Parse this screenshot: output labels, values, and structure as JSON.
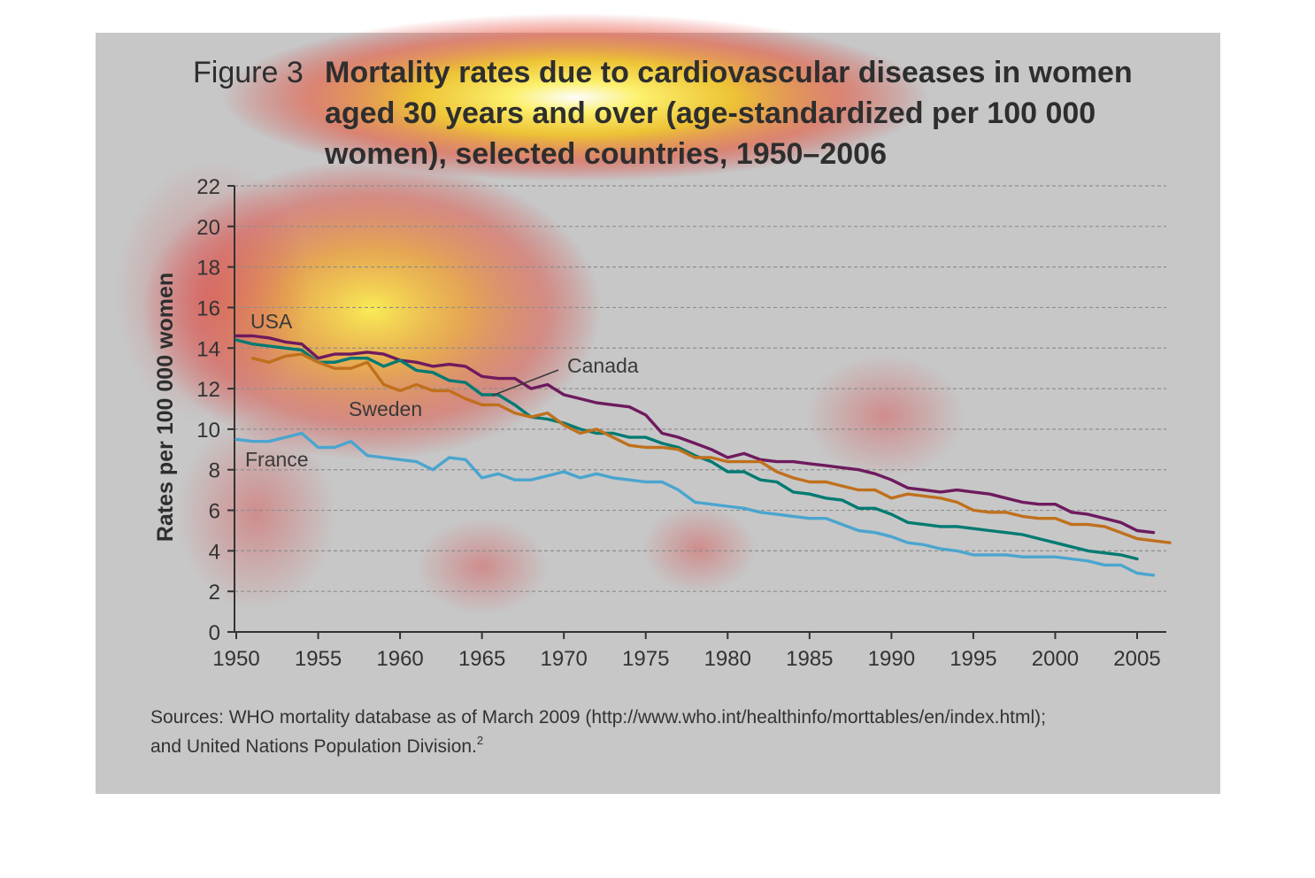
{
  "chart_data": {
    "type": "line",
    "figure_label": "Figure 3",
    "title_lines": [
      "Mortality rates due to cardiovascular diseases in women",
      "aged 30 years and over (age-standardized per 100 000",
      "women), selected countries, 1950–2006"
    ],
    "ylabel": "Rates per 100 000 women",
    "xlabel": "",
    "xlim": [
      1950,
      2007
    ],
    "ylim": [
      0,
      22
    ],
    "x_ticks": [
      1950,
      1955,
      1960,
      1965,
      1970,
      1975,
      1980,
      1985,
      1990,
      1995,
      2000,
      2005
    ],
    "y_ticks": [
      0,
      2,
      4,
      6,
      8,
      10,
      12,
      14,
      16,
      18,
      20,
      22
    ],
    "grid": true,
    "series": [
      {
        "name": "USA",
        "color": "#6e1a5e",
        "points": [
          [
            1950,
            14.6
          ],
          [
            1951,
            14.6
          ],
          [
            1952,
            14.5
          ],
          [
            1953,
            14.3
          ],
          [
            1954,
            14.2
          ],
          [
            1955,
            13.5
          ],
          [
            1956,
            13.7
          ],
          [
            1957,
            13.7
          ],
          [
            1958,
            13.8
          ],
          [
            1959,
            13.7
          ],
          [
            1960,
            13.4
          ],
          [
            1961,
            13.3
          ],
          [
            1962,
            13.1
          ],
          [
            1963,
            13.2
          ],
          [
            1964,
            13.1
          ],
          [
            1965,
            12.6
          ],
          [
            1966,
            12.5
          ],
          [
            1967,
            12.5
          ],
          [
            1968,
            12.0
          ],
          [
            1969,
            12.2
          ],
          [
            1970,
            11.7
          ],
          [
            1971,
            11.5
          ],
          [
            1972,
            11.3
          ],
          [
            1973,
            11.2
          ],
          [
            1974,
            11.1
          ],
          [
            1975,
            10.7
          ],
          [
            1976,
            9.8
          ],
          [
            1977,
            9.6
          ],
          [
            1978,
            9.3
          ],
          [
            1979,
            9.0
          ],
          [
            1980,
            8.6
          ],
          [
            1981,
            8.8
          ],
          [
            1982,
            8.5
          ],
          [
            1983,
            8.4
          ],
          [
            1984,
            8.4
          ],
          [
            1985,
            8.3
          ],
          [
            1986,
            8.2
          ],
          [
            1987,
            8.1
          ],
          [
            1988,
            8.0
          ],
          [
            1989,
            7.8
          ],
          [
            1990,
            7.5
          ],
          [
            1991,
            7.1
          ],
          [
            1992,
            7.0
          ],
          [
            1993,
            6.9
          ],
          [
            1994,
            7.0
          ],
          [
            1995,
            6.9
          ],
          [
            1996,
            6.8
          ],
          [
            1997,
            6.6
          ],
          [
            1998,
            6.4
          ],
          [
            1999,
            6.3
          ],
          [
            2000,
            6.3
          ],
          [
            2001,
            5.9
          ],
          [
            2002,
            5.8
          ],
          [
            2003,
            5.6
          ],
          [
            2004,
            5.4
          ],
          [
            2005,
            5.0
          ],
          [
            2006,
            4.9
          ]
        ]
      },
      {
        "name": "Canada",
        "color": "#007a72",
        "points": [
          [
            1950,
            14.4
          ],
          [
            1951,
            14.2
          ],
          [
            1952,
            14.1
          ],
          [
            1953,
            14.0
          ],
          [
            1954,
            13.9
          ],
          [
            1955,
            13.3
          ],
          [
            1956,
            13.3
          ],
          [
            1957,
            13.5
          ],
          [
            1958,
            13.5
          ],
          [
            1959,
            13.1
          ],
          [
            1960,
            13.4
          ],
          [
            1961,
            12.9
          ],
          [
            1962,
            12.8
          ],
          [
            1963,
            12.4
          ],
          [
            1964,
            12.3
          ],
          [
            1965,
            11.7
          ],
          [
            1966,
            11.7
          ],
          [
            1967,
            11.2
          ],
          [
            1968,
            10.6
          ],
          [
            1969,
            10.5
          ],
          [
            1970,
            10.3
          ],
          [
            1971,
            10.0
          ],
          [
            1972,
            9.8
          ],
          [
            1973,
            9.8
          ],
          [
            1974,
            9.6
          ],
          [
            1975,
            9.6
          ],
          [
            1976,
            9.3
          ],
          [
            1977,
            9.1
          ],
          [
            1978,
            8.7
          ],
          [
            1979,
            8.4
          ],
          [
            1980,
            7.9
          ],
          [
            1981,
            7.9
          ],
          [
            1982,
            7.5
          ],
          [
            1983,
            7.4
          ],
          [
            1984,
            6.9
          ],
          [
            1985,
            6.8
          ],
          [
            1986,
            6.6
          ],
          [
            1987,
            6.5
          ],
          [
            1988,
            6.1
          ],
          [
            1989,
            6.1
          ],
          [
            1990,
            5.8
          ],
          [
            1991,
            5.4
          ],
          [
            1992,
            5.3
          ],
          [
            1993,
            5.2
          ],
          [
            1994,
            5.2
          ],
          [
            1995,
            5.1
          ],
          [
            1996,
            5.0
          ],
          [
            1997,
            4.9
          ],
          [
            1998,
            4.8
          ],
          [
            1999,
            4.6
          ],
          [
            2000,
            4.4
          ],
          [
            2001,
            4.2
          ],
          [
            2002,
            4.0
          ],
          [
            2003,
            3.9
          ],
          [
            2004,
            3.8
          ],
          [
            2005,
            3.6
          ]
        ]
      },
      {
        "name": "Sweden",
        "color": "#c0701c",
        "points": [
          [
            1951,
            13.5
          ],
          [
            1952,
            13.3
          ],
          [
            1953,
            13.6
          ],
          [
            1954,
            13.7
          ],
          [
            1955,
            13.3
          ],
          [
            1956,
            13.0
          ],
          [
            1957,
            13.0
          ],
          [
            1958,
            13.3
          ],
          [
            1959,
            12.2
          ],
          [
            1960,
            11.9
          ],
          [
            1961,
            12.2
          ],
          [
            1962,
            11.9
          ],
          [
            1963,
            11.9
          ],
          [
            1964,
            11.5
          ],
          [
            1965,
            11.2
          ],
          [
            1966,
            11.2
          ],
          [
            1967,
            10.8
          ],
          [
            1968,
            10.6
          ],
          [
            1969,
            10.8
          ],
          [
            1970,
            10.2
          ],
          [
            1971,
            9.8
          ],
          [
            1972,
            10.0
          ],
          [
            1973,
            9.6
          ],
          [
            1974,
            9.2
          ],
          [
            1975,
            9.1
          ],
          [
            1976,
            9.1
          ],
          [
            1977,
            9.0
          ],
          [
            1978,
            8.6
          ],
          [
            1979,
            8.6
          ],
          [
            1980,
            8.4
          ],
          [
            1981,
            8.4
          ],
          [
            1982,
            8.4
          ],
          [
            1983,
            7.9
          ],
          [
            1984,
            7.6
          ],
          [
            1985,
            7.4
          ],
          [
            1986,
            7.4
          ],
          [
            1987,
            7.2
          ],
          [
            1988,
            7.0
          ],
          [
            1989,
            7.0
          ],
          [
            1990,
            6.6
          ],
          [
            1991,
            6.8
          ],
          [
            1992,
            6.7
          ],
          [
            1993,
            6.6
          ],
          [
            1994,
            6.4
          ],
          [
            1995,
            6.0
          ],
          [
            1996,
            5.9
          ],
          [
            1997,
            5.9
          ],
          [
            1998,
            5.7
          ],
          [
            1999,
            5.6
          ],
          [
            2000,
            5.6
          ],
          [
            2001,
            5.3
          ],
          [
            2002,
            5.3
          ],
          [
            2003,
            5.2
          ],
          [
            2004,
            4.9
          ],
          [
            2005,
            4.6
          ],
          [
            2006,
            4.5
          ],
          [
            2007,
            4.4
          ]
        ]
      },
      {
        "name": "France",
        "color": "#4aa5cf",
        "points": [
          [
            1950,
            9.5
          ],
          [
            1951,
            9.4
          ],
          [
            1952,
            9.4
          ],
          [
            1953,
            9.6
          ],
          [
            1954,
            9.8
          ],
          [
            1955,
            9.1
          ],
          [
            1956,
            9.1
          ],
          [
            1957,
            9.4
          ],
          [
            1958,
            8.7
          ],
          [
            1959,
            8.6
          ],
          [
            1960,
            8.5
          ],
          [
            1961,
            8.4
          ],
          [
            1962,
            8.0
          ],
          [
            1963,
            8.6
          ],
          [
            1964,
            8.5
          ],
          [
            1965,
            7.6
          ],
          [
            1966,
            7.8
          ],
          [
            1967,
            7.5
          ],
          [
            1968,
            7.5
          ],
          [
            1969,
            7.7
          ],
          [
            1970,
            7.9
          ],
          [
            1971,
            7.6
          ],
          [
            1972,
            7.8
          ],
          [
            1973,
            7.6
          ],
          [
            1974,
            7.5
          ],
          [
            1975,
            7.4
          ],
          [
            1976,
            7.4
          ],
          [
            1977,
            7.0
          ],
          [
            1978,
            6.4
          ],
          [
            1979,
            6.3
          ],
          [
            1980,
            6.2
          ],
          [
            1981,
            6.1
          ],
          [
            1982,
            5.9
          ],
          [
            1983,
            5.8
          ],
          [
            1984,
            5.7
          ],
          [
            1985,
            5.6
          ],
          [
            1986,
            5.6
          ],
          [
            1987,
            5.3
          ],
          [
            1988,
            5.0
          ],
          [
            1989,
            4.9
          ],
          [
            1990,
            4.7
          ],
          [
            1991,
            4.4
          ],
          [
            1992,
            4.3
          ],
          [
            1993,
            4.1
          ],
          [
            1994,
            4.0
          ],
          [
            1995,
            3.8
          ],
          [
            1996,
            3.8
          ],
          [
            1997,
            3.8
          ],
          [
            1998,
            3.7
          ],
          [
            1999,
            3.7
          ],
          [
            2000,
            3.7
          ],
          [
            2001,
            3.6
          ],
          [
            2002,
            3.5
          ],
          [
            2003,
            3.3
          ],
          [
            2004,
            3.3
          ],
          [
            2005,
            2.9
          ],
          [
            2006,
            2.8
          ]
        ]
      }
    ],
    "annotations": [
      {
        "text": "USA",
        "color": "#c0701c"
      },
      {
        "text": "Canada",
        "color": "#3a3a3a"
      },
      {
        "text": "Sweden",
        "color": "#3a3a3a"
      },
      {
        "text": "France",
        "color": "#3a3a3a"
      }
    ],
    "source_lines": [
      "Sources: WHO mortality database as of March 2009 (http://www.who.int/healthinfo/morttables/en/index.html);",
      "and United Nations Population Division."
    ],
    "source_footnote": "2"
  }
}
